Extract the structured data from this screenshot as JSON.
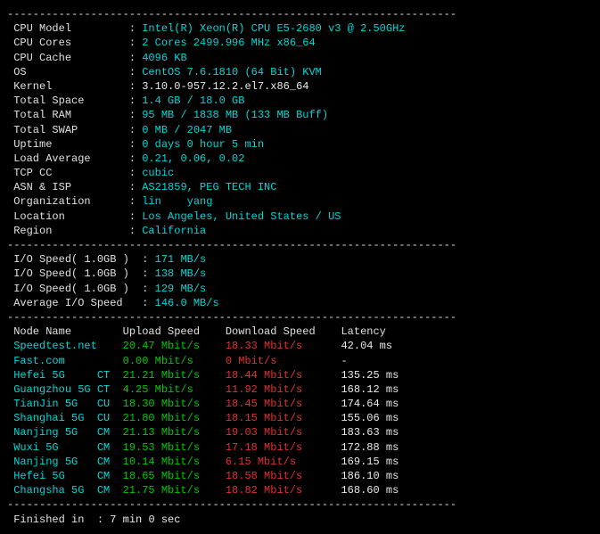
{
  "sys": {
    "cpu_model_label": "CPU Model",
    "cpu_model": "Intel(R) Xeon(R) CPU E5-2680 v3 @ 2.50GHz",
    "cpu_cores_label": "CPU Cores",
    "cpu_cores": "2 Cores 2499.996 MHz x86_64",
    "cpu_cache_label": "CPU Cache",
    "cpu_cache": "4096 KB",
    "os_label": "OS",
    "os": "CentOS 7.6.1810 (64 Bit) KVM",
    "kernel_label": "Kernel",
    "kernel": "3.10.0-957.12.2.el7.x86_64",
    "total_space_label": "Total Space",
    "total_space": "1.4 GB / 18.0 GB",
    "total_ram_label": "Total RAM",
    "total_ram": "95 MB / 1838 MB (133 MB Buff)",
    "total_swap_label": "Total SWAP",
    "total_swap": "0 MB / 2047 MB",
    "uptime_label": "Uptime",
    "uptime": "0 days 0 hour 5 min",
    "load_avg_label": "Load Average",
    "load_avg": "0.21, 0.06, 0.02",
    "tcp_cc_label": "TCP CC",
    "tcp_cc": "cubic",
    "asn_isp_label": "ASN & ISP",
    "asn_isp": "AS21859, PEG TECH INC",
    "org_label": "Organization",
    "org": "lin    yang",
    "location_label": "Location",
    "location": "Los Angeles, United States / US",
    "region_label": "Region",
    "region": "California"
  },
  "io": {
    "r1_label": "I/O Speed( 1.0GB )",
    "r1": "171 MB/s",
    "r2_label": "I/O Speed( 1.0GB )",
    "r2": "138 MB/s",
    "r3_label": "I/O Speed( 1.0GB )",
    "r3": "129 MB/s",
    "avg_label": "Average I/O Speed",
    "avg": "146.0 MB/s"
  },
  "hdr": {
    "node": "Node Name",
    "upload": "Upload Speed",
    "download": "Download Speed",
    "latency": "Latency"
  },
  "rows": [
    {
      "node": "Speedtest.net",
      "tag": "",
      "up": "20.47 Mbit/s",
      "dn": "18.33 Mbit/s",
      "lat": "42.04 ms"
    },
    {
      "node": "Fast.com",
      "tag": "",
      "up": "0.00 Mbit/s",
      "dn": "0 Mbit/s",
      "lat": "-"
    },
    {
      "node": "Hefei 5G",
      "tag": "CT",
      "up": "21.21 Mbit/s",
      "dn": "18.44 Mbit/s",
      "lat": "135.25 ms"
    },
    {
      "node": "Guangzhou 5G",
      "tag": "CT",
      "up": "4.25 Mbit/s",
      "dn": "11.92 Mbit/s",
      "lat": "168.12 ms"
    },
    {
      "node": "TianJin 5G",
      "tag": "CU",
      "up": "18.30 Mbit/s",
      "dn": "18.45 Mbit/s",
      "lat": "174.64 ms"
    },
    {
      "node": "Shanghai 5G",
      "tag": "CU",
      "up": "21.80 Mbit/s",
      "dn": "18.15 Mbit/s",
      "lat": "155.06 ms"
    },
    {
      "node": "Nanjing 5G",
      "tag": "CM",
      "up": "21.13 Mbit/s",
      "dn": "19.03 Mbit/s",
      "lat": "183.63 ms"
    },
    {
      "node": "Wuxi 5G",
      "tag": "CM",
      "up": "19.53 Mbit/s",
      "dn": "17.18 Mbit/s",
      "lat": "172.88 ms"
    },
    {
      "node": "Nanjing 5G",
      "tag": "CM",
      "up": "10.14 Mbit/s",
      "dn": "6.15 Mbit/s",
      "lat": "169.15 ms"
    },
    {
      "node": "Hefei 5G",
      "tag": "CM",
      "up": "18.65 Mbit/s",
      "dn": "18.58 Mbit/s",
      "lat": "186.10 ms"
    },
    {
      "node": "Changsha 5G",
      "tag": "CM",
      "up": "21.75 Mbit/s",
      "dn": "18.82 Mbit/s",
      "lat": "168.60 ms"
    }
  ],
  "footer": {
    "finished_label": "Finished in",
    "finished": "7 min 0 sec"
  },
  "dashline": "----------------------------------------------------------------------"
}
